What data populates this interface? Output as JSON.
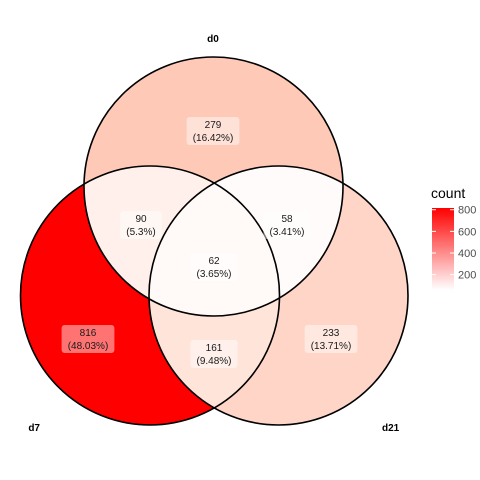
{
  "chart_data": {
    "type": "venn",
    "sets": [
      "d0",
      "d7",
      "d21"
    ],
    "regions": [
      {
        "sets": [
          "d0"
        ],
        "count": 279,
        "percent": "16.42%",
        "color": "#fec9b7"
      },
      {
        "sets": [
          "d7"
        ],
        "count": 816,
        "percent": "48.03%",
        "color": "#ff0000"
      },
      {
        "sets": [
          "d21"
        ],
        "count": 233,
        "percent": "13.71%",
        "color": "#fed5c7"
      },
      {
        "sets": [
          "d0",
          "d7"
        ],
        "count": 90,
        "percent": "5.3%",
        "color": "#fff0eb"
      },
      {
        "sets": [
          "d0",
          "d21"
        ],
        "count": 58,
        "percent": "3.41%",
        "color": "#fffbfa"
      },
      {
        "sets": [
          "d7",
          "d21"
        ],
        "count": 161,
        "percent": "9.48%",
        "color": "#ffe4da"
      },
      {
        "sets": [
          "d0",
          "d7",
          "d21"
        ],
        "count": 62,
        "percent": "3.65%",
        "color": "#fffaf8"
      }
    ],
    "legend": {
      "title": "count",
      "position": "right",
      "ticks": [
        200,
        400,
        600,
        800
      ],
      "range": [
        58,
        816
      ],
      "color_low": "#ffffff",
      "color_high": "#ff0000"
    }
  }
}
